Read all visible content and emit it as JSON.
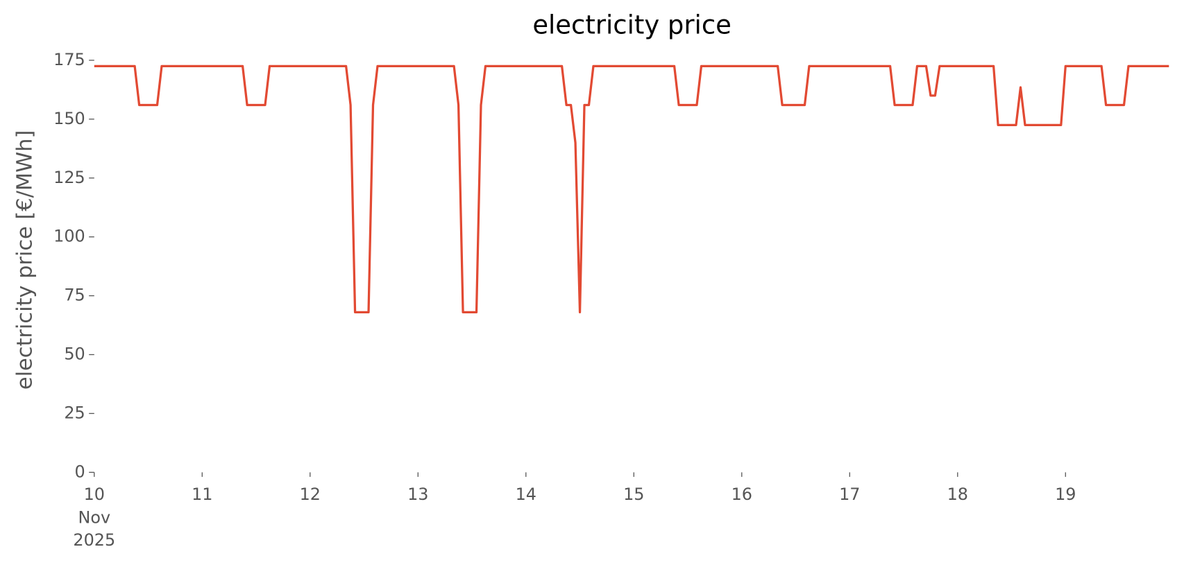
{
  "chart_data": {
    "type": "line",
    "title": "electricity price",
    "ylabel": "electricity price [€/MWh]",
    "x": [
      0,
      9,
      10,
      14,
      15,
      33,
      34,
      38,
      39,
      56,
      57,
      58,
      61,
      62,
      63,
      80,
      81,
      82,
      85,
      86,
      87,
      104,
      105,
      106,
      107,
      108,
      109,
      110,
      111,
      129,
      130,
      134,
      135,
      152,
      153,
      158,
      159,
      177,
      178,
      182,
      183,
      185,
      186,
      187,
      188,
      200,
      201,
      205,
      206,
      207,
      215,
      216,
      224,
      225,
      229,
      230,
      239
    ],
    "series": [
      {
        "name": "electricity price",
        "color": "#e24a33",
        "values": [
          172.5,
          172.5,
          156,
          156,
          172.5,
          172.5,
          156,
          156,
          172.5,
          172.5,
          156,
          68,
          68,
          156,
          172.5,
          172.5,
          156,
          68,
          68,
          156,
          172.5,
          172.5,
          156,
          156,
          140,
          68,
          156,
          156,
          172.5,
          172.5,
          156,
          156,
          172.5,
          172.5,
          156,
          156,
          172.5,
          172.5,
          156,
          156,
          172.5,
          172.5,
          160,
          160,
          172.5,
          172.5,
          147.5,
          147.5,
          163.5,
          147.5,
          147.5,
          172.5,
          172.5,
          156,
          156,
          172.5,
          172.5
        ]
      }
    ],
    "xlim": [
      0,
      239
    ],
    "xticks": [
      {
        "value": 0,
        "label": "10"
      },
      {
        "value": 24,
        "label": "11"
      },
      {
        "value": 48,
        "label": "12"
      },
      {
        "value": 72,
        "label": "13"
      },
      {
        "value": 96,
        "label": "14"
      },
      {
        "value": 120,
        "label": "15"
      },
      {
        "value": 144,
        "label": "16"
      },
      {
        "value": 168,
        "label": "17"
      },
      {
        "value": 192,
        "label": "18"
      },
      {
        "value": 216,
        "label": "19"
      }
    ],
    "x_first_tick_sublabels": [
      "Nov",
      "2025"
    ],
    "ylim": [
      0,
      175
    ],
    "yticks": [
      0,
      25,
      50,
      75,
      100,
      125,
      150,
      175
    ],
    "grid": false
  }
}
